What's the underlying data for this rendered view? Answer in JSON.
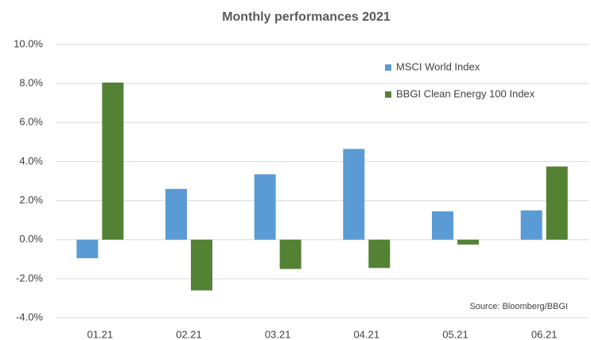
{
  "chart_data": {
    "type": "bar",
    "title": "Monthly performances 2021",
    "categories": [
      "01.21",
      "02.21",
      "03.21",
      "04.21",
      "05.21",
      "06.21"
    ],
    "series": [
      {
        "name": "MSCI World Index",
        "color": "#5b9bd5",
        "values": [
          -0.95,
          2.6,
          3.35,
          4.65,
          1.45,
          1.5
        ]
      },
      {
        "name": "BBGI Clean Energy 100 Index",
        "color": "#548235",
        "values": [
          8.05,
          -2.6,
          -1.5,
          -1.45,
          -0.25,
          3.75
        ]
      }
    ],
    "ylim": [
      -4,
      10
    ],
    "yticks": [
      {
        "value": -4,
        "label": "-4.0%"
      },
      {
        "value": -2,
        "label": "-2.0%"
      },
      {
        "value": 0,
        "label": "0.0%"
      },
      {
        "value": 2,
        "label": "2.0%"
      },
      {
        "value": 4,
        "label": "4.0%"
      },
      {
        "value": 6,
        "label": "6.0%"
      },
      {
        "value": 8,
        "label": "8.0%"
      },
      {
        "value": 10,
        "label": "10.0%"
      }
    ],
    "grid": true,
    "legend": "top-right",
    "annotation": "Source: Bloomberg/BBGI"
  }
}
